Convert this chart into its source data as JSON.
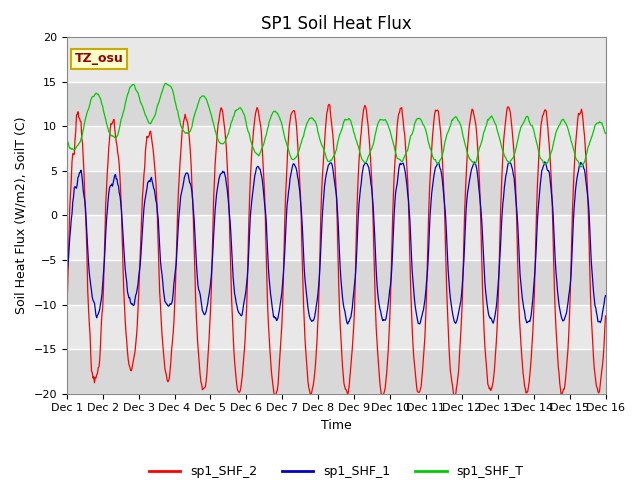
{
  "title": "SP1 Soil Heat Flux",
  "xlabel": "Time",
  "ylabel": "Soil Heat Flux (W/m2), SoilT (C)",
  "xlim": [
    0,
    15
  ],
  "ylim": [
    -20,
    20
  ],
  "yticks": [
    -20,
    -15,
    -10,
    -5,
    0,
    5,
    10,
    15,
    20
  ],
  "xtick_labels": [
    "Dec 1",
    "Dec 2",
    "Dec 3",
    "Dec 4",
    "Dec 5",
    "Dec 6",
    "Dec 7",
    "Dec 8",
    "Dec 9",
    "Dec 10",
    "Dec 11",
    "Dec 12",
    "Dec 13",
    "Dec 14",
    "Dec 15",
    "Dec 16"
  ],
  "color_shf2": "#ff0000",
  "color_shf1": "#0000cc",
  "color_shfT": "#00cc00",
  "bg_color": "#e8e8e8",
  "annotation_text": "TZ_osu",
  "annotation_bg": "#ffffcc",
  "annotation_border": "#ccaa00",
  "legend_labels": [
    "sp1_SHF_2",
    "sp1_SHF_1",
    "sp1_SHF_T"
  ],
  "title_fontsize": 12,
  "axis_fontsize": 9,
  "tick_fontsize": 8
}
